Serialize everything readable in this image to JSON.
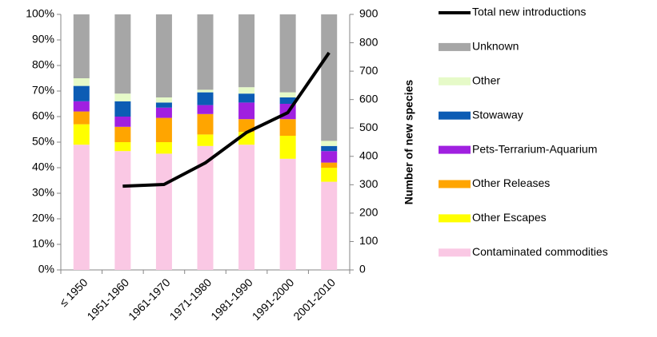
{
  "chart_data": {
    "type": "bar",
    "stacked": true,
    "y2label": "Number of new species",
    "categories": [
      "≤ 1950",
      "1951-1960",
      "1961-1970",
      "1971-1980",
      "1981-1990",
      "1991-2000",
      "2001-2010"
    ],
    "series": [
      {
        "name": "Contaminated commodities",
        "color": "#fac8e4",
        "values": [
          49,
          46.5,
          45.5,
          48.5,
          49,
          43.5,
          34.5
        ]
      },
      {
        "name": "Other Escapes",
        "color": "#ffff00",
        "values": [
          8,
          3.5,
          4.5,
          4.5,
          5,
          9,
          5.5
        ]
      },
      {
        "name": "Other Releases",
        "color": "#ffa500",
        "values": [
          5,
          6,
          9.5,
          8,
          5,
          6.5,
          2
        ]
      },
      {
        "name": "Pets-Terrarium-Aquarium",
        "color": "#a020e0",
        "values": [
          4,
          4,
          4,
          3.5,
          6.5,
          6,
          4.5
        ]
      },
      {
        "name": "Stowaway",
        "color": "#0c5cb4",
        "values": [
          6,
          6,
          2,
          5,
          3.5,
          2.5,
          2
        ]
      },
      {
        "name": "Other",
        "color": "#e6fac8",
        "values": [
          3,
          3,
          2,
          1,
          2.5,
          2,
          2
        ]
      },
      {
        "name": "Unknown",
        "color": "#a6a6a6",
        "values": [
          25,
          31,
          32.5,
          29.5,
          28.5,
          30.5,
          49.5
        ]
      },
      {
        "name": "Total new introductions",
        "color": "#000000",
        "axis": "y2",
        "line": true,
        "values": [
          null,
          295,
          301,
          377,
          484,
          554,
          765
        ]
      }
    ],
    "ylim": [
      0,
      100
    ],
    "yticks": [
      {
        "value": 0,
        "label": "0%"
      },
      {
        "value": 10,
        "label": "10%"
      },
      {
        "value": 20,
        "label": "20%"
      },
      {
        "value": 30,
        "label": "30%"
      },
      {
        "value": 40,
        "label": "40%"
      },
      {
        "value": 50,
        "label": "50%"
      },
      {
        "value": 60,
        "label": "60%"
      },
      {
        "value": 70,
        "label": "70%"
      },
      {
        "value": 80,
        "label": "80%"
      },
      {
        "value": 90,
        "label": "90%"
      },
      {
        "value": 100,
        "label": "100%"
      }
    ],
    "y2lim": [
      0,
      900
    ],
    "y2ticks": [
      0,
      100,
      200,
      300,
      400,
      500,
      600,
      700,
      800,
      900
    ],
    "grid": false
  }
}
